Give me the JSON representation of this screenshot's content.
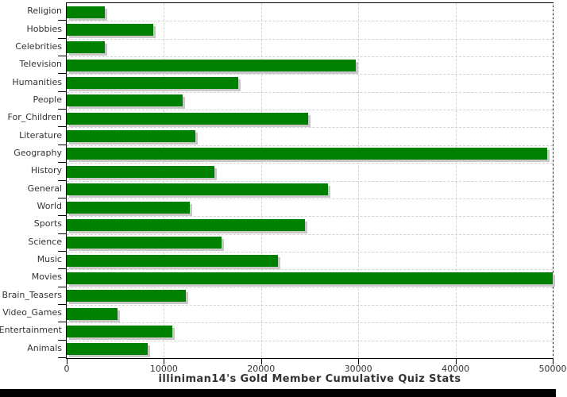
{
  "title": "illiniman14's Gold Member Cumulative Quiz Stats",
  "chart_data": {
    "type": "bar",
    "orientation": "horizontal",
    "title": "illiniman14's Gold Member Cumulative Quiz Stats",
    "xlabel": "",
    "ylabel": "",
    "categories": [
      "Religion",
      "Hobbies",
      "Celebrities",
      "Television",
      "Humanities",
      "People",
      "For_Children",
      "Literature",
      "Geography",
      "History",
      "General",
      "World",
      "Sports",
      "Science",
      "Music",
      "Movies",
      "Brain_Teasers",
      "Video_Games",
      "Entertainment",
      "Animals"
    ],
    "values": [
      3950,
      8900,
      3900,
      29700,
      17650,
      11950,
      24800,
      13250,
      49400,
      15200,
      26900,
      12650,
      24550,
      15950,
      21700,
      50000,
      12250,
      5250,
      10900,
      8300
    ],
    "xlim": [
      0,
      50000
    ],
    "x_ticks": [
      0,
      10000,
      20000,
      30000,
      40000,
      50000
    ],
    "x_tick_labels": [
      "0",
      "10000",
      "20000",
      "30000",
      "40000",
      "50000"
    ],
    "grid": true,
    "legend": "none",
    "colors": {
      "bar": "#008000",
      "bar_shadow": "#c8c8c8",
      "grid": "#d2d2d2",
      "axis": "#000000",
      "text": "#333333",
      "background": "#ffffff",
      "footer_bar": "#000000"
    }
  }
}
